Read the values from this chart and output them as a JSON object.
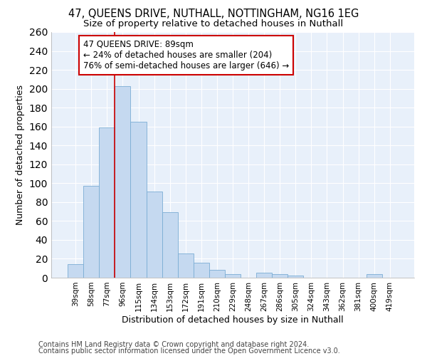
{
  "title_line1": "47, QUEENS DRIVE, NUTHALL, NOTTINGHAM, NG16 1EG",
  "title_line2": "Size of property relative to detached houses in Nuthall",
  "xlabel": "Distribution of detached houses by size in Nuthall",
  "ylabel": "Number of detached properties",
  "categories": [
    "39sqm",
    "58sqm",
    "77sqm",
    "96sqm",
    "115sqm",
    "134sqm",
    "153sqm",
    "172sqm",
    "191sqm",
    "210sqm",
    "229sqm",
    "248sqm",
    "267sqm",
    "286sqm",
    "305sqm",
    "324sqm",
    "343sqm",
    "362sqm",
    "381sqm",
    "400sqm",
    "419sqm"
  ],
  "values": [
    14,
    97,
    159,
    203,
    165,
    91,
    69,
    26,
    16,
    8,
    4,
    0,
    5,
    4,
    2,
    0,
    0,
    0,
    0,
    4,
    0
  ],
  "bar_color": "#c5d9f0",
  "bar_edge_color": "#7aadd4",
  "bg_color": "#e8f0fa",
  "grid_color": "#ffffff",
  "fig_bg_color": "#ffffff",
  "annotation_text": "47 QUEENS DRIVE: 89sqm\n← 24% of detached houses are smaller (204)\n76% of semi-detached houses are larger (646) →",
  "annotation_box_color": "#ffffff",
  "annotation_box_edge_color": "#cc0000",
  "vline_color": "#cc0000",
  "ylim": [
    0,
    260
  ],
  "yticks": [
    0,
    20,
    40,
    60,
    80,
    100,
    120,
    140,
    160,
    180,
    200,
    220,
    240,
    260
  ],
  "footer_line1": "Contains HM Land Registry data © Crown copyright and database right 2024.",
  "footer_line2": "Contains public sector information licensed under the Open Government Licence v3.0.",
  "title_fontsize": 10.5,
  "subtitle_fontsize": 9.5,
  "axis_label_fontsize": 9,
  "tick_fontsize": 7.5,
  "annotation_fontsize": 8.5,
  "footer_fontsize": 7
}
